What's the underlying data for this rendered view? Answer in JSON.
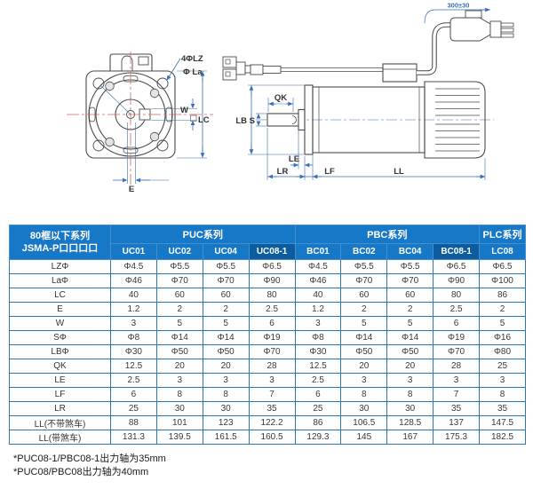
{
  "diagram": {
    "front_view": {
      "bolt_holes_label": "4ΦLZ",
      "pilot_label": "Φ La",
      "shaft_width_label": "W",
      "flange_size_label": "LC",
      "key_offset_label": "E"
    },
    "side_view": {
      "key_length_label": "QK",
      "pilot_dia_label": "LB",
      "shaft_dia_label": "S",
      "le_label": "LE",
      "shaft_ext_label": "LR",
      "flange_thk_label": "LF",
      "body_length_label": "LL",
      "cable_length_label": "300±30"
    }
  },
  "table": {
    "header": {
      "title_line1": "80框以下系列",
      "title_line2": "JSMA-P口口口口",
      "groups": [
        {
          "label": "PUC系列",
          "span": 4
        },
        {
          "label": "PBC系列",
          "span": 4
        },
        {
          "label": "PLC系列",
          "span": 1
        }
      ]
    },
    "columns": [
      "UC01",
      "UC02",
      "UC04",
      "UC08-1",
      "BC01",
      "BC02",
      "BC04",
      "BC08-1",
      "LC08"
    ],
    "highlight_columns": [
      3,
      7
    ],
    "rows": [
      {
        "label": "LZΦ",
        "values": [
          "Φ4.5",
          "Φ5.5",
          "Φ5.5",
          "Φ6.5",
          "Φ4.5",
          "Φ5.5",
          "Φ5.5",
          "Φ6.5",
          "Φ6.5"
        ]
      },
      {
        "label": "LaΦ",
        "values": [
          "Φ46",
          "Φ70",
          "Φ70",
          "Φ90",
          "Φ46",
          "Φ70",
          "Φ70",
          "Φ90",
          "Φ100"
        ]
      },
      {
        "label": "LC",
        "values": [
          "40",
          "60",
          "60",
          "80",
          "40",
          "60",
          "60",
          "80",
          "86"
        ]
      },
      {
        "label": "E",
        "values": [
          "1.2",
          "2",
          "2",
          "2.5",
          "1.2",
          "2",
          "2",
          "2.5",
          "2"
        ]
      },
      {
        "label": "W",
        "values": [
          "3",
          "5",
          "5",
          "6",
          "3",
          "5",
          "5",
          "6",
          "5"
        ]
      },
      {
        "label": "SΦ",
        "values": [
          "Φ8",
          "Φ14",
          "Φ14",
          "Φ19",
          "Φ8",
          "Φ14",
          "Φ14",
          "Φ19",
          "Φ16"
        ]
      },
      {
        "label": "LBΦ",
        "values": [
          "Φ30",
          "Φ50",
          "Φ50",
          "Φ70",
          "Φ30",
          "Φ50",
          "Φ50",
          "Φ70",
          "Φ80"
        ]
      },
      {
        "label": "QK",
        "values": [
          "12.5",
          "20",
          "20",
          "28",
          "12.5",
          "20",
          "20",
          "28",
          "25"
        ]
      },
      {
        "label": "LE",
        "values": [
          "2.5",
          "3",
          "3",
          "3",
          "2.5",
          "3",
          "3",
          "3",
          "3"
        ]
      },
      {
        "label": "LF",
        "values": [
          "6",
          "8",
          "8",
          "7",
          "6",
          "8",
          "8",
          "7",
          "8"
        ]
      },
      {
        "label": "LR",
        "values": [
          "25",
          "30",
          "30",
          "35",
          "25",
          "30",
          "30",
          "35",
          "35"
        ]
      },
      {
        "label": "LL(不带煞车)",
        "values": [
          "88",
          "101",
          "123",
          "122.2",
          "86",
          "106.5",
          "128.5",
          "137",
          "147.5"
        ]
      },
      {
        "label": "LL(带煞车)",
        "values": [
          "131.3",
          "139.5",
          "161.5",
          "160.5",
          "129.3",
          "145",
          "167",
          "175.3",
          "182.5"
        ]
      }
    ]
  },
  "notes": [
    "*PUC08-1/PBC08-1出力轴为35mm",
    "*PUC08/PBC08出力轴为40mm"
  ],
  "colors": {
    "header_blue": "#1878c8",
    "header_dark_blue": "#0d5c9e",
    "border_blue": "#2e75b6",
    "dimension_blue": "#3b6fb5",
    "centerline_red": "#cc6666",
    "outline_gray": "#4a4a4a"
  }
}
